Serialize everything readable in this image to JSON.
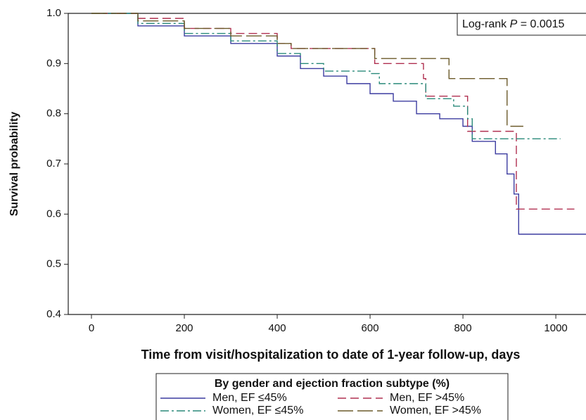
{
  "chart_data": {
    "type": "step",
    "x_label": "Time from visit/hospitalization to date of 1-year follow-up, days",
    "y_label": "Survival probability",
    "annotation_parts": [
      "Log-rank ",
      "P",
      " = 0.0015"
    ],
    "legend_title": "By gender and ejection fraction subtype (%)",
    "xlim": [
      -50,
      1065
    ],
    "ylim": [
      0.4,
      1.0
    ],
    "xticks": [
      0,
      200,
      400,
      600,
      800,
      1000
    ],
    "yticks": [
      0.4,
      0.5,
      0.6,
      0.7,
      0.8,
      0.9,
      {
        "value": 1,
        "label": "1.0"
      }
    ],
    "series": [
      {
        "name": "Men, EF ≤45%",
        "color": "#3c3ca0",
        "dash": "none",
        "x": [
          0,
          100,
          200,
          300,
          400,
          450,
          500,
          550,
          600,
          650,
          700,
          750,
          800,
          820,
          870,
          895,
          910,
          920,
          1065
        ],
        "values": [
          1.0,
          0.975,
          0.955,
          0.94,
          0.915,
          0.89,
          0.875,
          0.86,
          0.84,
          0.825,
          0.8,
          0.79,
          0.775,
          0.745,
          0.72,
          0.68,
          0.64,
          0.56,
          0.56
        ]
      },
      {
        "name": "Men, EF >45%",
        "color": "#b03050",
        "dash": "12 6",
        "x": [
          0,
          100,
          200,
          300,
          400,
          430,
          600,
          610,
          700,
          715,
          720,
          800,
          810,
          900,
          915,
          1040
        ],
        "values": [
          1.0,
          0.99,
          0.97,
          0.96,
          0.94,
          0.93,
          0.93,
          0.9,
          0.9,
          0.87,
          0.835,
          0.835,
          0.765,
          0.765,
          0.61,
          0.61
        ]
      },
      {
        "name": "Women, EF ≤45%",
        "color": "#2a8a7a",
        "dash": "12 4 3 4",
        "x": [
          0,
          100,
          200,
          300,
          400,
          450,
          500,
          600,
          620,
          700,
          720,
          780,
          810,
          820,
          1010
        ],
        "values": [
          1.0,
          0.98,
          0.96,
          0.945,
          0.92,
          0.9,
          0.885,
          0.88,
          0.86,
          0.86,
          0.83,
          0.815,
          0.79,
          0.75,
          0.75
        ]
      },
      {
        "name": "Women, EF >45%",
        "color": "#6b5a2a",
        "dash": "22 6",
        "x": [
          0,
          100,
          200,
          300,
          400,
          430,
          600,
          610,
          760,
          770,
          880,
          895,
          930
        ],
        "values": [
          1.0,
          0.985,
          0.97,
          0.955,
          0.94,
          0.93,
          0.93,
          0.91,
          0.91,
          0.87,
          0.87,
          0.775,
          0.775
        ]
      }
    ]
  }
}
